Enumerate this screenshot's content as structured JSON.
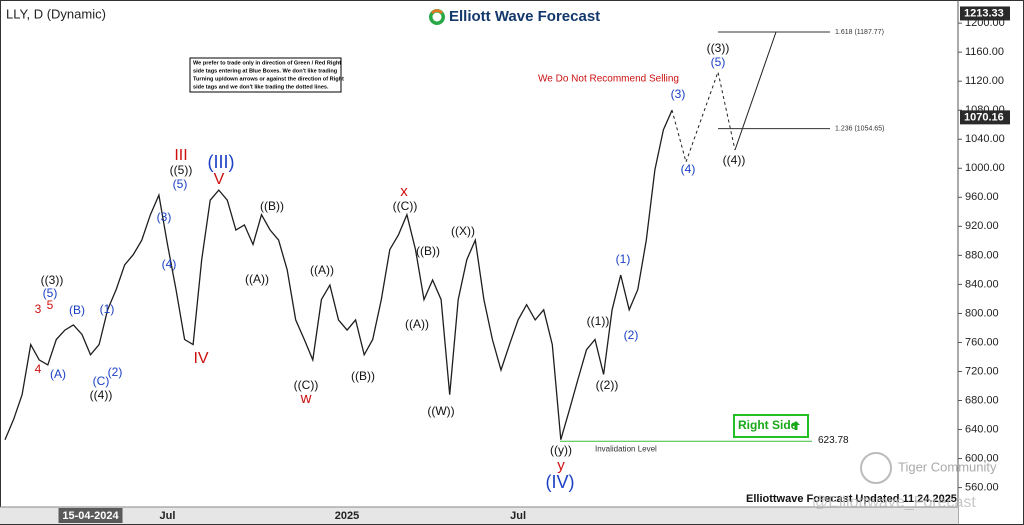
{
  "chart_data": {
    "type": "line",
    "title": "LLY, D (Dynamic)",
    "brand": "Elliott Wave Forecast",
    "color": "#1e1e1e",
    "categories": [
      null,
      null,
      null,
      null,
      null,
      null,
      null,
      null,
      null,
      null,
      "15-04-2024",
      null,
      null,
      null,
      null,
      null,
      null,
      null,
      null,
      "Jul",
      null,
      null,
      null,
      null,
      null,
      null,
      null,
      null,
      null,
      null,
      null,
      null,
      null,
      null,
      null,
      null,
      null,
      null,
      null,
      null,
      "2025",
      null,
      null,
      null,
      null,
      null,
      null,
      null,
      null,
      null,
      null,
      null,
      null,
      null,
      null,
      null,
      null,
      null,
      null,
      null,
      "Jul",
      null,
      null,
      null,
      null,
      null,
      null,
      null,
      null,
      null,
      null,
      null,
      null,
      null,
      null,
      null,
      null,
      null,
      null
    ],
    "values": [
      626,
      654,
      688,
      757,
      736,
      729,
      764,
      777,
      784,
      771,
      743,
      757,
      805,
      833,
      867,
      881,
      901,
      936,
      963,
      895,
      833,
      764,
      757,
      874,
      956,
      970,
      956,
      915,
      922,
      895,
      936,
      915,
      901,
      860,
      791,
      764,
      736,
      819,
      839,
      791,
      777,
      791,
      743,
      764,
      819,
      888,
      908,
      936,
      888,
      819,
      846,
      819,
      688,
      819,
      874,
      901,
      819,
      764,
      722,
      757,
      791,
      812,
      791,
      805,
      757,
      626,
      667,
      709,
      750,
      764,
      716,
      805,
      853,
      805,
      833,
      901,
      998,
      1053,
      1080
    ],
    "ylim": [
      536,
      1225
    ],
    "yticks": [
      {
        "value": 560,
        "label": "560.00"
      },
      {
        "value": 600,
        "label": "600.00"
      },
      {
        "value": 640,
        "label": "640.00"
      },
      {
        "value": 680,
        "label": "680.00"
      },
      {
        "value": 720,
        "label": "720.00"
      },
      {
        "value": 760,
        "label": "760.00"
      },
      {
        "value": 800,
        "label": "800.00"
      },
      {
        "value": 840,
        "label": "840.00"
      },
      {
        "value": 880,
        "label": "880.00"
      },
      {
        "value": 920,
        "label": "920.00"
      },
      {
        "value": 960,
        "label": "960.00"
      },
      {
        "value": 1000,
        "label": "1000.00"
      },
      {
        "value": 1040,
        "label": "1040.00"
      },
      {
        "value": 1080,
        "label": "1080.00"
      },
      {
        "value": 1120,
        "label": "1120.00"
      },
      {
        "value": 1160,
        "label": "1160.00"
      },
      {
        "value": 1200,
        "label": "1200.00"
      }
    ],
    "top_price": 1213.33,
    "last_price": 1070.16,
    "fib_levels": [
      {
        "value": 1187.77,
        "label": "1.618 (1187.77)"
      },
      {
        "value": 1054.65,
        "label": "1.236 (1054.65)"
      }
    ],
    "invalidation": {
      "value": 623.78,
      "label": "Invalidation Level"
    },
    "signal": "Right Side",
    "warning": "We Do Not Recommend Selling",
    "note_lines": [
      "We prefer to trade only in direction of Green / Red Right",
      "side tags entering at Blue Boxes. We don't like trading",
      "Turning up/down arrows or against the direction of Right",
      "side tags and we don't like trading the dotted lines."
    ],
    "wave_labels": [
      {
        "text": "((3))",
        "color": "#111111"
      },
      {
        "text": "(5)",
        "color": "#1a3fc4"
      },
      {
        "text": "3",
        "color": "#cc1010"
      },
      {
        "text": "5",
        "color": "#cc1010"
      },
      {
        "text": "4",
        "color": "#cc1010"
      },
      {
        "text": "(A)",
        "color": "#1a3fc4"
      },
      {
        "text": "(B)",
        "color": "#1a3fc4"
      },
      {
        "text": "(1)",
        "color": "#1a3fc4"
      },
      {
        "text": "(C)",
        "color": "#1a3fc4"
      },
      {
        "text": "(2)",
        "color": "#1a3fc4"
      },
      {
        "text": "((4))",
        "color": "#111111"
      },
      {
        "text": "(3)",
        "color": "#1a3fc4"
      },
      {
        "text": "(4)",
        "color": "#1a3fc4"
      },
      {
        "text": "III",
        "color": "#cc1010"
      },
      {
        "text": "((5))",
        "color": "#111111"
      },
      {
        "text": "(5)",
        "color": "#1a3fc4"
      },
      {
        "text": "(III)",
        "color": "#1a3fc4"
      },
      {
        "text": "V",
        "color": "#cc1010"
      },
      {
        "text": "IV",
        "color": "#cc1010"
      },
      {
        "text": "((B))",
        "color": "#111111"
      },
      {
        "text": "((A))",
        "color": "#111111"
      },
      {
        "text": "((A))",
        "color": "#111111"
      },
      {
        "text": "((C))",
        "color": "#111111"
      },
      {
        "text": "w",
        "color": "#cc1010"
      },
      {
        "text": "((B))",
        "color": "#111111"
      },
      {
        "text": "x",
        "color": "#cc1010"
      },
      {
        "text": "((C))",
        "color": "#111111"
      },
      {
        "text": "((B))",
        "color": "#111111"
      },
      {
        "text": "((A))",
        "color": "#111111"
      },
      {
        "text": "((X))",
        "color": "#111111"
      },
      {
        "text": "((W))",
        "color": "#111111"
      },
      {
        "text": "((y))",
        "color": "#111111"
      },
      {
        "text": "y",
        "color": "#cc1010"
      },
      {
        "text": "(IV)",
        "color": "#1a3fc4"
      },
      {
        "text": "((1))",
        "color": "#111111"
      },
      {
        "text": "((2))",
        "color": "#111111"
      },
      {
        "text": "(1)",
        "color": "#1a3fc4"
      },
      {
        "text": "(2)",
        "color": "#1a3fc4"
      },
      {
        "text": "(3)",
        "color": "#1a3fc4"
      },
      {
        "text": "(4)",
        "color": "#1a3fc4"
      },
      {
        "text": "((3))",
        "color": "#111111"
      },
      {
        "text": "(5)",
        "color": "#1a3fc4"
      },
      {
        "text": "((4))",
        "color": "#111111"
      }
    ],
    "footer": "Elliottwave Forecast Updated 11.24.2025",
    "watermark": [
      "Tiger Community",
      "@Elliottwave_Forecast"
    ]
  }
}
